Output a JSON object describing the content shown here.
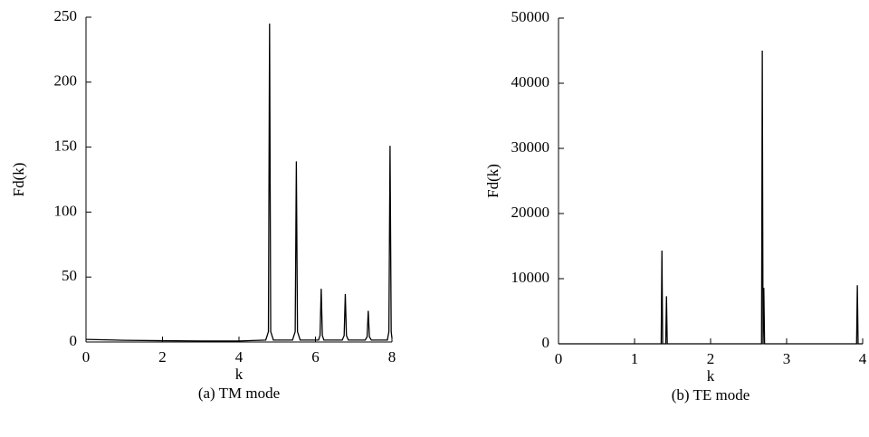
{
  "chart_data": [
    {
      "type": "line",
      "caption": "(a) TM mode",
      "xlabel": "k",
      "ylabel": "Fd(k)",
      "xlim": [
        0,
        8
      ],
      "ylim": [
        0,
        250
      ],
      "xticks": [
        0,
        2,
        4,
        6,
        8
      ],
      "yticks": [
        0,
        50,
        100,
        150,
        200,
        250
      ],
      "x": [
        0,
        1,
        2,
        3,
        4,
        4.7,
        4.77,
        4.8,
        4.83,
        4.9,
        5.4,
        5.47,
        5.5,
        5.53,
        5.6,
        6.08,
        6.12,
        6.15,
        6.18,
        6.22,
        6.7,
        6.75,
        6.78,
        6.81,
        6.86,
        7.3,
        7.35,
        7.38,
        7.41,
        7.46,
        7.88,
        7.92,
        7.95,
        7.98,
        8
      ],
      "series": [
        {
          "name": "Fd(k)",
          "color": "#000000",
          "values": [
            2,
            1.3,
            1,
            0.8,
            0.8,
            1.5,
            8,
            245,
            8,
            1.5,
            1.5,
            8,
            139,
            8,
            1.5,
            1.5,
            5,
            41,
            5,
            1.5,
            1.5,
            5,
            37,
            5,
            1.5,
            1.5,
            4,
            24,
            4,
            1.5,
            1.5,
            8,
            151,
            8,
            3
          ]
        }
      ]
    },
    {
      "type": "line",
      "caption": "(b) TE mode",
      "xlabel": "k",
      "ylabel": "Fd(k)",
      "xlim": [
        0,
        4
      ],
      "ylim": [
        0,
        50000
      ],
      "xticks": [
        0,
        1,
        2,
        3,
        4
      ],
      "yticks": [
        0,
        10000,
        20000,
        30000,
        40000,
        50000
      ],
      "x": [
        0,
        1.35,
        1.36,
        1.37,
        1.41,
        1.42,
        1.43,
        2.67,
        2.68,
        2.69,
        2.7,
        2.71,
        3.92,
        3.93,
        3.94,
        4
      ],
      "series": [
        {
          "name": "Fd(k)",
          "color": "#000000",
          "values": [
            0,
            0,
            14300,
            0,
            0,
            7300,
            0,
            0,
            45000,
            0,
            8600,
            0,
            0,
            9000,
            0,
            0
          ]
        }
      ]
    }
  ]
}
